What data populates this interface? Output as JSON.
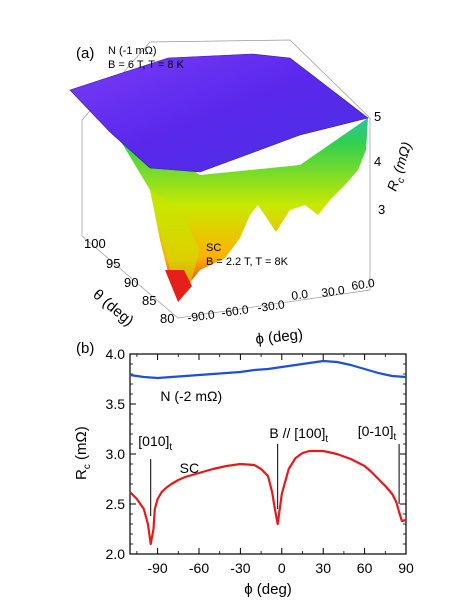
{
  "panel_a": {
    "label": "(a)",
    "n_label_1": "N (-1 mΩ)",
    "n_label_2": "B = 6 T, T = 8 K",
    "sc_label_1": "SC",
    "sc_label_2": "B = 2.2 T, T = 8K",
    "z_axis_label": "R",
    "z_axis_sub": "c",
    "z_axis_unit": " (mΩ)",
    "z_ticks": [
      "5",
      "4",
      "3"
    ],
    "theta_label": "θ (deg)",
    "theta_ticks": [
      "100",
      "95",
      "90",
      "85",
      "80"
    ],
    "phi_label": "ϕ (deg)",
    "phi_ticks": [
      "-90.0",
      "-60.0",
      "-30.0",
      "0.0",
      "30.0",
      "60.0"
    ],
    "colors": {
      "top_surface": "#6a2cf5",
      "surface_low": "#e0101a",
      "surface_mid": "#f5e000",
      "surface_high": "#30d030"
    }
  },
  "chart_data": {
    "type": "line",
    "panel_label": "(b)",
    "xlabel": "ϕ (deg)",
    "ylabel": "R",
    "ylabel_sub": "c",
    "ylabel_unit": " (mΩ)",
    "xlim": [
      -110,
      90
    ],
    "ylim": [
      2.0,
      4.0
    ],
    "x_ticks": [
      -90,
      -60,
      -30,
      0,
      30,
      60,
      90
    ],
    "x_tick_labels": [
      "-90",
      "-60",
      "-30",
      "0",
      "30",
      "60",
      "90"
    ],
    "y_ticks": [
      2.0,
      2.5,
      3.0,
      3.5,
      4.0
    ],
    "y_tick_labels": [
      "2.0",
      "2.5",
      "3.0",
      "3.5",
      "4.0"
    ],
    "grid": false,
    "series": [
      {
        "name": "N (-2 mΩ)",
        "color": "#1f4fd6",
        "x": [
          -110,
          -100,
          -90,
          -80,
          -70,
          -60,
          -50,
          -40,
          -30,
          -20,
          -10,
          0,
          10,
          20,
          30,
          40,
          50,
          60,
          70,
          80,
          90
        ],
        "y": [
          3.79,
          3.77,
          3.76,
          3.77,
          3.78,
          3.79,
          3.8,
          3.81,
          3.82,
          3.84,
          3.85,
          3.87,
          3.89,
          3.91,
          3.93,
          3.92,
          3.89,
          3.85,
          3.81,
          3.78,
          3.77
        ]
      },
      {
        "name": "SC",
        "color": "#e31a1c",
        "x": [
          -110,
          -105,
          -100,
          -97,
          -95,
          -93,
          -92,
          -90,
          -87,
          -84,
          -80,
          -75,
          -70,
          -60,
          -50,
          -40,
          -30,
          -20,
          -15,
          -10,
          -7,
          -5,
          -3,
          0,
          5,
          10,
          15,
          20,
          30,
          40,
          50,
          60,
          65,
          70,
          75,
          80,
          83,
          85,
          87,
          90
        ],
        "y": [
          2.62,
          2.55,
          2.45,
          2.3,
          2.1,
          2.25,
          2.45,
          2.55,
          2.62,
          2.66,
          2.7,
          2.74,
          2.77,
          2.81,
          2.85,
          2.88,
          2.9,
          2.89,
          2.85,
          2.78,
          2.62,
          2.45,
          2.3,
          2.6,
          2.85,
          2.96,
          3.01,
          3.03,
          3.03,
          3.0,
          2.95,
          2.88,
          2.82,
          2.75,
          2.68,
          2.6,
          2.52,
          2.42,
          2.33,
          2.34
        ]
      }
    ],
    "annotations": [
      {
        "text": "N (-2 mΩ)"
      },
      {
        "text": "SC"
      },
      {
        "text": "[010]",
        "sub": "t",
        "x": -95
      },
      {
        "text": "B // [100]",
        "sub": "t",
        "x": -3
      },
      {
        "text": "[0-10]",
        "sub": "t",
        "x": 85
      }
    ]
  }
}
